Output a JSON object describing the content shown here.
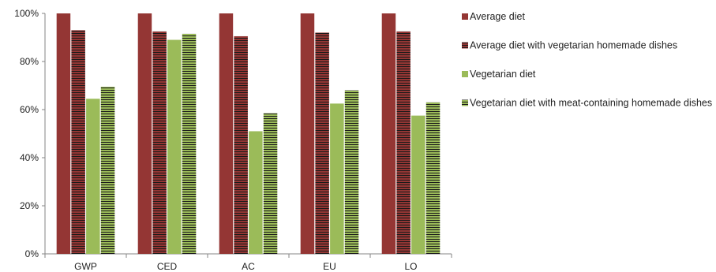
{
  "chart_data": {
    "type": "bar",
    "categories": [
      "GWP",
      "CED",
      "AC",
      "EU",
      "LO"
    ],
    "series": [
      {
        "name": "Average diet",
        "values": [
          100,
          100,
          100,
          100,
          100
        ]
      },
      {
        "name": "Average diet with vegetarian homemade dishes",
        "values": [
          93,
          92.5,
          90.5,
          92,
          92.5
        ]
      },
      {
        "name": "Vegetarian diet",
        "values": [
          64.5,
          89,
          51,
          62.5,
          57.5
        ]
      },
      {
        "name": "Vegetarian diet with meat-containing homemade dishes",
        "values": [
          69.5,
          91.5,
          58.5,
          68,
          63
        ]
      }
    ],
    "ylim": [
      0,
      100
    ],
    "yticks": [
      "0%",
      "20%",
      "40%",
      "60%",
      "80%",
      "100%"
    ],
    "ytick_values": [
      0,
      20,
      40,
      60,
      80,
      100
    ],
    "legend_position": "right",
    "grid": false
  },
  "colors": {
    "average": "#943634",
    "vegetarian": "#9bbb59",
    "stripe_dark": "#1a1a1a"
  }
}
